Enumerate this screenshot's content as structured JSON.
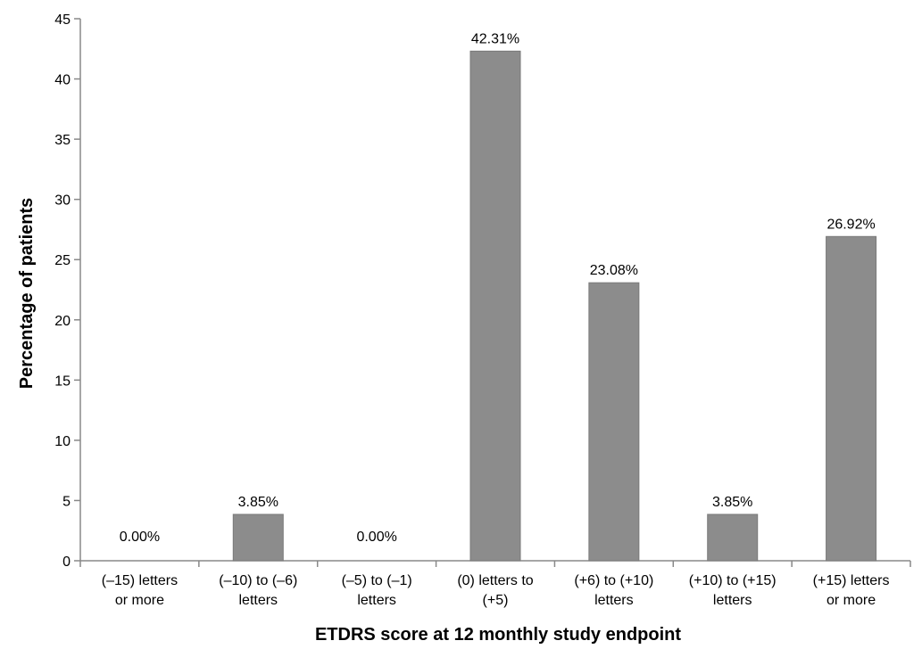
{
  "chart_data": {
    "type": "bar",
    "categories": [
      [
        "(–15) letters",
        "or more"
      ],
      [
        "(–10) to (–6)",
        "letters"
      ],
      [
        "(–5) to (–1)",
        "letters"
      ],
      [
        "(0) letters to",
        "(+5)"
      ],
      [
        "(+6) to (+10)",
        "letters"
      ],
      [
        "(+10) to (+15)",
        "letters"
      ],
      [
        "(+15) letters",
        "or more"
      ]
    ],
    "values": [
      0,
      3.85,
      0,
      42.31,
      23.08,
      3.85,
      26.92
    ],
    "data_labels": [
      "0.00%",
      "3.85%",
      "0.00%",
      "42.31%",
      "23.08%",
      "3.85%",
      "26.92%"
    ],
    "title": "",
    "xlabel": "ETDRS score at 12 monthly study endpoint",
    "ylabel": "Percentage of patients",
    "ylim": [
      0,
      45
    ],
    "yticks": [
      0,
      5,
      10,
      15,
      20,
      25,
      30,
      35,
      40,
      45
    ],
    "grid": false,
    "legend": "none",
    "bar_color": "#8c8c8c",
    "axis_color": "#888888"
  }
}
